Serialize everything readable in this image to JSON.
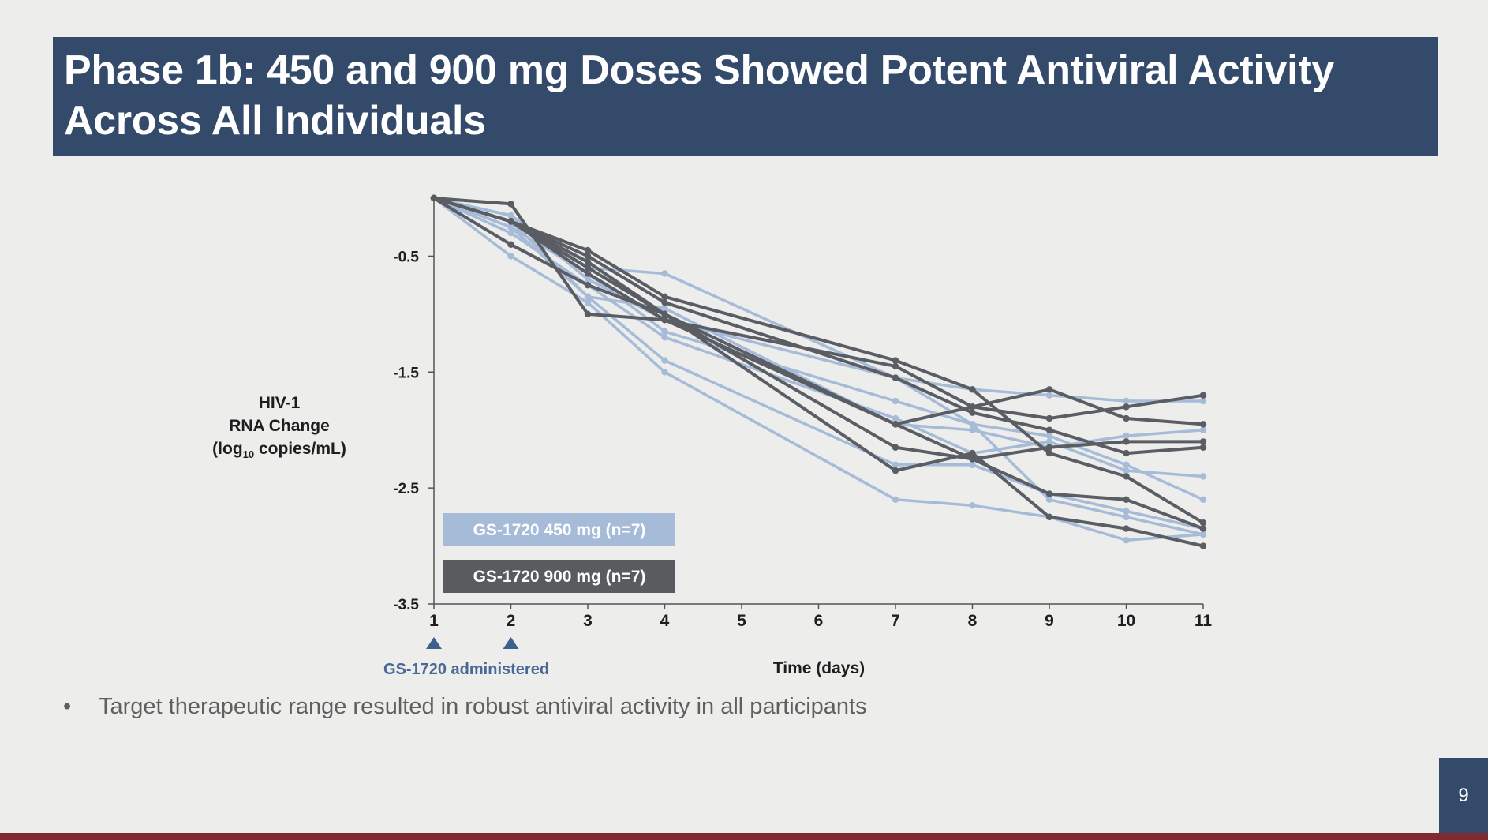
{
  "slide": {
    "title": "Phase 1b: 450 and 900 mg Doses Showed Potent Antiviral Activity\nAcross All Individuals",
    "bullet": "Target therapeutic range resulted in robust antiviral activity in all participants",
    "page_number": "9"
  },
  "colors": {
    "title_bg": "#344a6a",
    "series_450": "#a6bbd8",
    "series_900": "#5a5d63",
    "legend_450": "#a6bbd8",
    "legend_900": "#595b5f",
    "annotation": "#4a6896",
    "bottom_bar": "#7d2a30"
  },
  "chart_data": {
    "type": "line",
    "ylabel_lines": [
      "HIV-1",
      "RNA Change"
    ],
    "ylabel_unit": {
      "prefix": "(log",
      "sub": "10",
      "suffix": " copies/mL)"
    },
    "xlabel": "Time (days)",
    "x": [
      1,
      2,
      3,
      4,
      7,
      8,
      9,
      10,
      11
    ],
    "xticks": [
      "1",
      "2",
      "3",
      "4",
      "5",
      "6",
      "7",
      "8",
      "9",
      "10",
      "11"
    ],
    "xlim": [
      1,
      11
    ],
    "ylim": [
      -3.5,
      0
    ],
    "yticks": [
      -0.5,
      -1.5,
      -2.5,
      -3.5
    ],
    "ytick_labels": [
      "-0.5",
      "-1.5",
      "-2.5",
      "-3.5"
    ],
    "legend": [
      "GS-1720 450 mg (n=7)",
      "GS-1720 900 mg (n=7)"
    ],
    "annotation": "GS-1720 administered",
    "dose_days": [
      1,
      2
    ],
    "series": [
      {
        "group": "450",
        "values": [
          0,
          -0.15,
          -0.6,
          -0.65,
          -1.55,
          -1.95,
          -2.6,
          -2.75,
          -2.9
        ]
      },
      {
        "group": "450",
        "values": [
          0,
          -0.5,
          -0.9,
          -1.5,
          -2.6,
          -2.65,
          -2.75,
          -2.95,
          -2.9
        ]
      },
      {
        "group": "450",
        "values": [
          0,
          -0.2,
          -0.85,
          -1.4,
          -2.3,
          -2.3,
          -2.55,
          -2.7,
          -2.85
        ]
      },
      {
        "group": "450",
        "values": [
          0,
          -0.3,
          -0.75,
          -1.2,
          -1.9,
          -2.2,
          -2.1,
          -2.35,
          -2.4
        ]
      },
      {
        "group": "450",
        "values": [
          0,
          -0.25,
          -0.65,
          -1.15,
          -1.75,
          -1.95,
          -2.05,
          -2.3,
          -2.6
        ]
      },
      {
        "group": "450",
        "values": [
          0,
          -0.15,
          -0.7,
          -1.05,
          -1.55,
          -1.65,
          -1.7,
          -1.75,
          -1.75
        ]
      },
      {
        "group": "450",
        "values": [
          0,
          -0.25,
          -0.85,
          -0.95,
          -1.95,
          -2.0,
          -2.15,
          -2.05,
          -2.0
        ]
      },
      {
        "group": "900",
        "values": [
          0,
          -0.2,
          -0.45,
          -0.85,
          -1.4,
          -1.65,
          -2.2,
          -2.4,
          -2.8
        ]
      },
      {
        "group": "900",
        "values": [
          0,
          -0.05,
          -1.0,
          -1.05,
          -1.45,
          -1.8,
          -1.9,
          -1.8,
          -1.7
        ]
      },
      {
        "group": "900",
        "values": [
          0,
          -0.2,
          -0.5,
          -0.9,
          -1.55,
          -1.85,
          -2.0,
          -2.2,
          -2.15
        ]
      },
      {
        "group": "900",
        "values": [
          0,
          -0.4,
          -0.75,
          -1.0,
          -1.95,
          -1.8,
          -1.65,
          -1.9,
          -1.95
        ]
      },
      {
        "group": "900",
        "values": [
          0,
          -0.2,
          -0.6,
          -1.0,
          -2.15,
          -2.25,
          -2.55,
          -2.6,
          -2.85
        ]
      },
      {
        "group": "900",
        "values": [
          0,
          -0.2,
          -0.55,
          -1.0,
          -2.35,
          -2.2,
          -2.75,
          -2.85,
          -3.0
        ]
      },
      {
        "group": "900",
        "values": [
          0,
          -0.2,
          -0.65,
          -1.05,
          -1.95,
          -2.25,
          -2.15,
          -2.1,
          -2.1
        ]
      }
    ]
  }
}
